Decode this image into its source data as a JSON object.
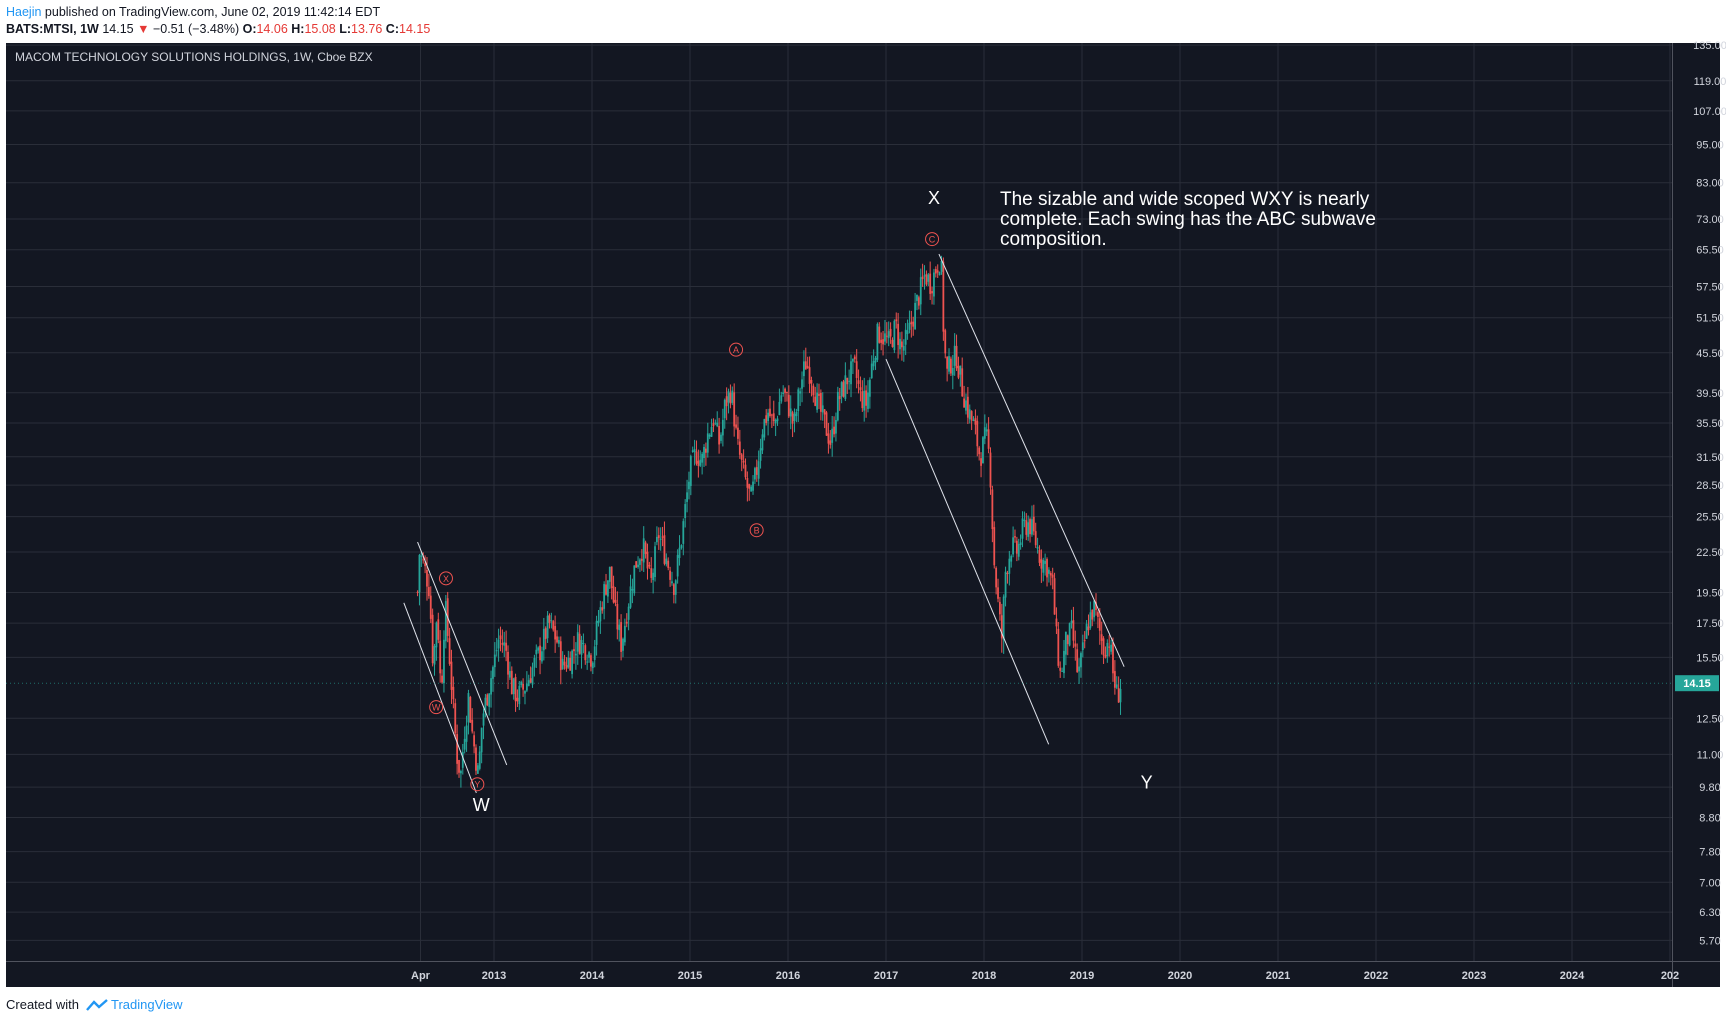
{
  "header": {
    "author": "Haejin",
    "published": "published on TradingView.com, June 02, 2019 11:42:14 EDT"
  },
  "ohlc": {
    "symbol": "BATS:MTSI, 1W",
    "last": "14.15",
    "arrow": "▼",
    "change": "−0.51 (−3.48%)",
    "o_label": "O:",
    "o": "14.06",
    "h_label": "H:",
    "h": "15.08",
    "l_label": "L:",
    "l": "13.76",
    "c_label": "C:",
    "c": "14.15"
  },
  "footer": {
    "created_with": "Created with",
    "brand": "TradingView"
  },
  "colors": {
    "background": "#131722",
    "grid": "#2a2e39",
    "up": "#26a69a",
    "down": "#ef5350",
    "wave_label": "#ef5350",
    "text": "#d1d4dc",
    "price_badge": "#26a69a"
  },
  "chart_data": {
    "type": "candlestick",
    "title": "MACOM TECHNOLOGY SOLUTIONS HOLDINGS, 1W, Cboe BZX",
    "scale": "log",
    "ylim": [
      5.3,
      136
    ],
    "y_ticks": [
      "135.00",
      "119.00",
      "107.00",
      "95.00",
      "83.00",
      "73.00",
      "65.50",
      "57.50",
      "51.50",
      "45.50",
      "39.50",
      "35.50",
      "31.50",
      "28.50",
      "25.50",
      "22.50",
      "19.50",
      "17.50",
      "15.50",
      "12.50",
      "11.00",
      "9.80",
      "8.80",
      "7.80",
      "7.00",
      "6.30",
      "5.70"
    ],
    "x_ticks": [
      {
        "label": "Apr",
        "year": 2012.25
      },
      {
        "label": "2013",
        "year": 2013
      },
      {
        "label": "2014",
        "year": 2014
      },
      {
        "label": "2015",
        "year": 2015
      },
      {
        "label": "2016",
        "year": 2016
      },
      {
        "label": "2017",
        "year": 2017
      },
      {
        "label": "2018",
        "year": 2018
      },
      {
        "label": "2019",
        "year": 2019
      },
      {
        "label": "2020",
        "year": 2020
      },
      {
        "label": "2021",
        "year": 2021
      },
      {
        "label": "2022",
        "year": 2022
      },
      {
        "label": "2023",
        "year": 2023
      },
      {
        "label": "2024",
        "year": 2024
      },
      {
        "label": "202",
        "year": 2025
      }
    ],
    "price_path": [
      [
        2012.22,
        19.5
      ],
      [
        2012.24,
        22.5
      ],
      [
        2012.3,
        21.0
      ],
      [
        2012.34,
        19.8
      ],
      [
        2012.38,
        15.0
      ],
      [
        2012.42,
        18.5
      ],
      [
        2012.46,
        13.5
      ],
      [
        2012.5,
        18.8
      ],
      [
        2012.54,
        16.0
      ],
      [
        2012.58,
        13.2
      ],
      [
        2012.62,
        11.0
      ],
      [
        2012.66,
        10.2
      ],
      [
        2012.7,
        12.0
      ],
      [
        2012.74,
        13.5
      ],
      [
        2012.78,
        11.8
      ],
      [
        2012.84,
        10.2
      ],
      [
        2012.88,
        12.5
      ],
      [
        2012.94,
        13.8
      ],
      [
        2013.0,
        15.2
      ],
      [
        2013.05,
        16.6
      ],
      [
        2013.12,
        16.0
      ],
      [
        2013.18,
        14.0
      ],
      [
        2013.24,
        13.5
      ],
      [
        2013.32,
        14.0
      ],
      [
        2013.4,
        15.0
      ],
      [
        2013.48,
        16.0
      ],
      [
        2013.56,
        17.5
      ],
      [
        2013.64,
        16.5
      ],
      [
        2013.7,
        15.0
      ],
      [
        2013.78,
        15.5
      ],
      [
        2013.86,
        16.5
      ],
      [
        2013.94,
        16.0
      ],
      [
        2014.0,
        15.5
      ],
      [
        2014.06,
        17.5
      ],
      [
        2014.12,
        19.5
      ],
      [
        2014.18,
        21.0
      ],
      [
        2014.24,
        18.0
      ],
      [
        2014.3,
        16.2
      ],
      [
        2014.36,
        18.5
      ],
      [
        2014.44,
        21.5
      ],
      [
        2014.52,
        23.0
      ],
      [
        2014.6,
        20.0
      ],
      [
        2014.68,
        24.0
      ],
      [
        2014.76,
        22.0
      ],
      [
        2014.84,
        20.0
      ],
      [
        2014.92,
        24.0
      ],
      [
        2015.0,
        30.0
      ],
      [
        2015.06,
        32.0
      ],
      [
        2015.12,
        31.0
      ],
      [
        2015.18,
        34.0
      ],
      [
        2015.24,
        36.0
      ],
      [
        2015.3,
        33.0
      ],
      [
        2015.36,
        38.0
      ],
      [
        2015.42,
        40.0
      ],
      [
        2015.48,
        33.0
      ],
      [
        2015.54,
        30.0
      ],
      [
        2015.62,
        27.0
      ],
      [
        2015.68,
        30.0
      ],
      [
        2015.74,
        35.0
      ],
      [
        2015.8,
        37.0
      ],
      [
        2015.86,
        35.0
      ],
      [
        2015.94,
        40.0
      ],
      [
        2016.0,
        38.0
      ],
      [
        2016.06,
        35.0
      ],
      [
        2016.12,
        40.0
      ],
      [
        2016.18,
        44.0
      ],
      [
        2016.24,
        42.0
      ],
      [
        2016.3,
        38.0
      ],
      [
        2016.36,
        36.0
      ],
      [
        2016.44,
        33.0
      ],
      [
        2016.5,
        38.0
      ],
      [
        2016.56,
        40.0
      ],
      [
        2016.62,
        42.0
      ],
      [
        2016.68,
        43.0
      ],
      [
        2016.74,
        39.0
      ],
      [
        2016.8,
        38.0
      ],
      [
        2016.86,
        44.0
      ],
      [
        2016.92,
        49.0
      ],
      [
        2016.98,
        48.0
      ],
      [
        2017.04,
        47.0
      ],
      [
        2017.1,
        50.0
      ],
      [
        2017.16,
        46.0
      ],
      [
        2017.22,
        48.0
      ],
      [
        2017.28,
        52.0
      ],
      [
        2017.34,
        56.0
      ],
      [
        2017.4,
        60.0
      ],
      [
        2017.46,
        58.0
      ],
      [
        2017.52,
        62.0
      ],
      [
        2017.56,
        64.0
      ],
      [
        2017.59,
        48.0
      ],
      [
        2017.62,
        42.0
      ],
      [
        2017.66,
        44.0
      ],
      [
        2017.72,
        45.0
      ],
      [
        2017.78,
        40.0
      ],
      [
        2017.84,
        37.0
      ],
      [
        2017.9,
        35.0
      ],
      [
        2017.96,
        31.5
      ],
      [
        2018.02,
        34.0
      ],
      [
        2018.06,
        31.0
      ],
      [
        2018.1,
        22.0
      ],
      [
        2018.14,
        19.0
      ],
      [
        2018.18,
        16.5
      ],
      [
        2018.22,
        21.0
      ],
      [
        2018.28,
        23.0
      ],
      [
        2018.34,
        22.5
      ],
      [
        2018.4,
        24.5
      ],
      [
        2018.46,
        25.0
      ],
      [
        2018.52,
        23.5
      ],
      [
        2018.58,
        22.0
      ],
      [
        2018.64,
        21.5
      ],
      [
        2018.7,
        20.0
      ],
      [
        2018.74,
        16.5
      ],
      [
        2018.78,
        14.5
      ],
      [
        2018.84,
        16.5
      ],
      [
        2018.9,
        17.0
      ],
      [
        2018.96,
        14.5
      ],
      [
        2019.0,
        15.5
      ],
      [
        2019.06,
        17.5
      ],
      [
        2019.12,
        18.5
      ],
      [
        2019.16,
        17.5
      ],
      [
        2019.22,
        16.0
      ],
      [
        2019.28,
        16.5
      ],
      [
        2019.32,
        14.5
      ],
      [
        2019.36,
        13.5
      ],
      [
        2019.4,
        14.15
      ]
    ],
    "wave_labels": [
      {
        "text": "W",
        "year": 2012.41,
        "price": 13.0
      },
      {
        "text": "X",
        "year": 2012.51,
        "price": 20.5
      },
      {
        "text": "Y",
        "year": 2012.83,
        "price": 9.9
      },
      {
        "text": "A",
        "year": 2015.47,
        "price": 46.0
      },
      {
        "text": "B",
        "year": 2015.68,
        "price": 24.3
      },
      {
        "text": "C",
        "year": 2017.47,
        "price": 68.0
      }
    ],
    "degree_labels": [
      {
        "text": "W",
        "year": 2012.87,
        "price": 9.0
      },
      {
        "text": "X",
        "year": 2017.49,
        "price": 77.0
      },
      {
        "text": "Y",
        "year": 2019.66,
        "price": 9.75
      }
    ],
    "annotation": "The sizable and wide scoped WXY is nearly complete. Each swing has the ABC subwave composition.",
    "trend_lines": [
      [
        [
          2012.08,
          18.8
        ],
        [
          2012.82,
          9.6
        ]
      ],
      [
        [
          2012.22,
          23.3
        ],
        [
          2013.13,
          10.6
        ]
      ],
      [
        [
          2017.0,
          44.5
        ],
        [
          2018.66,
          11.4
        ]
      ],
      [
        [
          2017.54,
          64.5
        ],
        [
          2019.43,
          15.0
        ]
      ]
    ],
    "last_price": "14.15"
  }
}
